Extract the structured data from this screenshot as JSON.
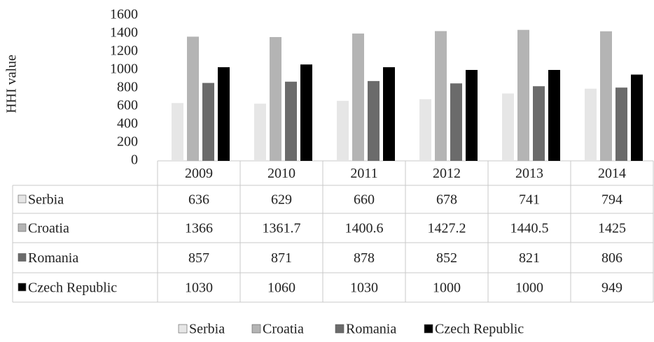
{
  "chart_data": {
    "type": "bar",
    "y_label": "HHI value",
    "categories": [
      "2009",
      "2010",
      "2011",
      "2012",
      "2013",
      "2014"
    ],
    "series": [
      {
        "name": "Serbia",
        "color": "#e6e6e6",
        "values": [
          636,
          629,
          660,
          678,
          741,
          794
        ]
      },
      {
        "name": "Croatia",
        "color": "#b4b4b4",
        "values": [
          1366,
          1361.7,
          1400.6,
          1427.2,
          1440.5,
          1425
        ]
      },
      {
        "name": "Romania",
        "color": "#6b6b6b",
        "values": [
          857,
          871,
          878,
          852,
          821,
          806
        ]
      },
      {
        "name": "Czech Republic",
        "color": "#000000",
        "values": [
          1030,
          1060,
          1030,
          1000,
          1000,
          949
        ]
      }
    ],
    "ylim": [
      0,
      1600
    ],
    "yticks": [
      0,
      200,
      400,
      600,
      800,
      1000,
      1200,
      1400,
      1600
    ],
    "legend": "bottom"
  }
}
